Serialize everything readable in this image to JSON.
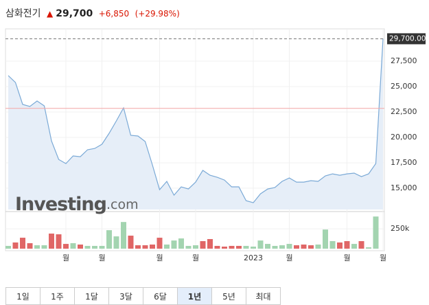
{
  "header": {
    "name": "삼화전기",
    "price": "29,700",
    "change": "+6,850",
    "change_pct": "(+29.98%)"
  },
  "chart_data": {
    "type": "area",
    "color": "#7aa9d6",
    "fill": "#e6eef8",
    "categories": [
      null,
      null,
      null,
      null,
      null,
      null,
      null,
      null,
      "월",
      null,
      null,
      null,
      null,
      "월",
      null,
      null,
      null,
      null,
      null,
      null,
      null,
      "월",
      null,
      null,
      null,
      null,
      "월",
      null,
      null,
      null,
      null,
      null,
      null,
      null,
      "2023",
      null,
      null,
      null,
      null,
      "월",
      null,
      null,
      null,
      null,
      null,
      null,
      null,
      "월",
      null,
      null,
      null,
      null,
      "월"
    ],
    "values": [
      26080,
      25400,
      23240,
      23040,
      23580,
      23100,
      19650,
      17830,
      17420,
      18170,
      18100,
      18780,
      18910,
      19320,
      20400,
      21620,
      22900,
      20200,
      20130,
      19590,
      17290,
      14850,
      15670,
      14310,
      15130,
      14920,
      15600,
      16750,
      16270,
      16070,
      15800,
      15130,
      15130,
      13770,
      13570,
      14450,
      14920,
      15060,
      15670,
      16000,
      15600,
      15600,
      15740,
      15670,
      16210,
      16410,
      16270,
      16410,
      16480,
      16140,
      16410,
      17420,
      29700
    ],
    "ylim": [
      12900,
      30000
    ],
    "yticks": [
      {
        "value": 15000,
        "label": "15,000"
      },
      {
        "value": 17500,
        "label": "17,500"
      },
      {
        "value": 20000,
        "label": "20,000"
      },
      {
        "value": 22500,
        "label": "22,500"
      },
      {
        "value": 25000,
        "label": "25,000"
      },
      {
        "value": 27500,
        "label": "27,500"
      }
    ],
    "prev_close": 22850,
    "last_price": {
      "value": 29700,
      "label": "29,700.00"
    },
    "watermark": [
      "Investing",
      ".com"
    ],
    "volume": {
      "type": "bar",
      "values": [
        35000,
        78000,
        138000,
        69000,
        43000,
        43000,
        190000,
        181000,
        60000,
        69000,
        52000,
        35000,
        35000,
        35000,
        233000,
        155000,
        336000,
        164000,
        43000,
        43000,
        52000,
        138000,
        52000,
        103000,
        129000,
        35000,
        43000,
        95000,
        121000,
        35000,
        26000,
        35000,
        35000,
        35000,
        26000,
        103000,
        60000,
        35000,
        43000,
        60000,
        43000,
        52000,
        43000,
        52000,
        241000,
        95000,
        78000,
        95000,
        60000,
        95000,
        17000,
        405000,
        null
      ],
      "colors": [
        "#a3d4b0",
        "#e06666",
        "#e06666",
        "#e06666",
        "#a3d4b0",
        "#a3d4b0",
        "#e06666",
        "#e06666",
        "#e06666",
        "#a3d4b0",
        "#e06666",
        "#a3d4b0",
        "#a3d4b0",
        "#a3d4b0",
        "#a3d4b0",
        "#a3d4b0",
        "#a3d4b0",
        "#e06666",
        "#e06666",
        "#e06666",
        "#e06666",
        "#e06666",
        "#a3d4b0",
        "#a3d4b0",
        "#a3d4b0",
        "#a3d4b0",
        "#a3d4b0",
        "#e06666",
        "#e06666",
        "#e06666",
        "#e06666",
        "#e06666",
        "#e06666",
        "#a3d4b0",
        "#a3d4b0",
        "#a3d4b0",
        "#a3d4b0",
        "#a3d4b0",
        "#a3d4b0",
        "#a3d4b0",
        "#e06666",
        "#e06666",
        "#e06666",
        "#a3d4b0",
        "#a3d4b0",
        "#a3d4b0",
        "#e06666",
        "#e06666",
        "#a3d4b0",
        "#e06666",
        "#a3d4b0",
        "#a3d4b0",
        null
      ],
      "ylim": [
        0,
        450000
      ],
      "yticks": [
        {
          "value": 250000,
          "label": "250k"
        }
      ]
    }
  },
  "buttons": {
    "labels": [
      "1일",
      "1주",
      "1달",
      "3달",
      "6달",
      "1년",
      "5년",
      "최대"
    ],
    "selected": 5
  }
}
